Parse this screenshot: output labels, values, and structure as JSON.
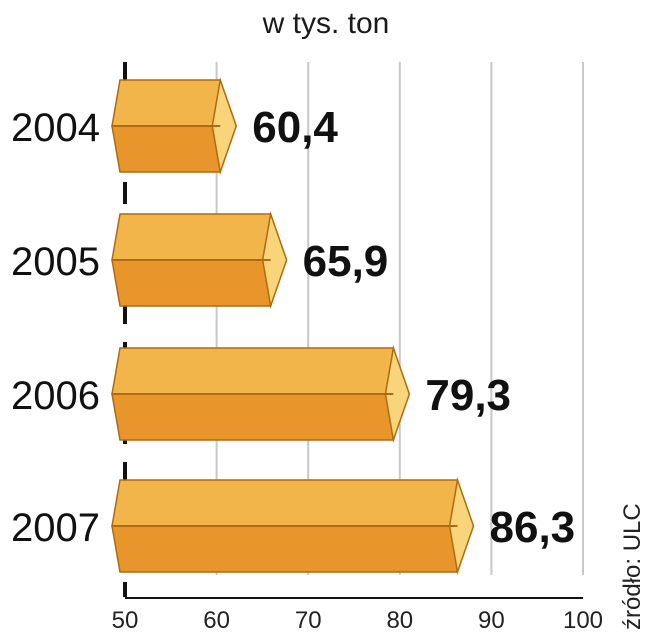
{
  "chart_data": {
    "type": "bar",
    "orientation": "horizontal",
    "subtitle": "w tys. ton",
    "categories": [
      "2004",
      "2005",
      "2006",
      "2007"
    ],
    "values": [
      60.4,
      65.9,
      79.3,
      86.3
    ],
    "value_labels": [
      "60,4",
      "65,9",
      "79,3",
      "86,3"
    ],
    "xlim": [
      50,
      100
    ],
    "x_ticks": [
      "50",
      "60",
      "70",
      "80",
      "90",
      "100"
    ],
    "grid": true,
    "source": "źródło: ULC"
  },
  "colors": {
    "bar_top": "#f2b54a",
    "bar_bottom": "#e8962c",
    "bar_cap": "#f8d57a",
    "bar_outline": "#b06a10",
    "grid": "#c8c8c8",
    "axis": "#111111"
  }
}
